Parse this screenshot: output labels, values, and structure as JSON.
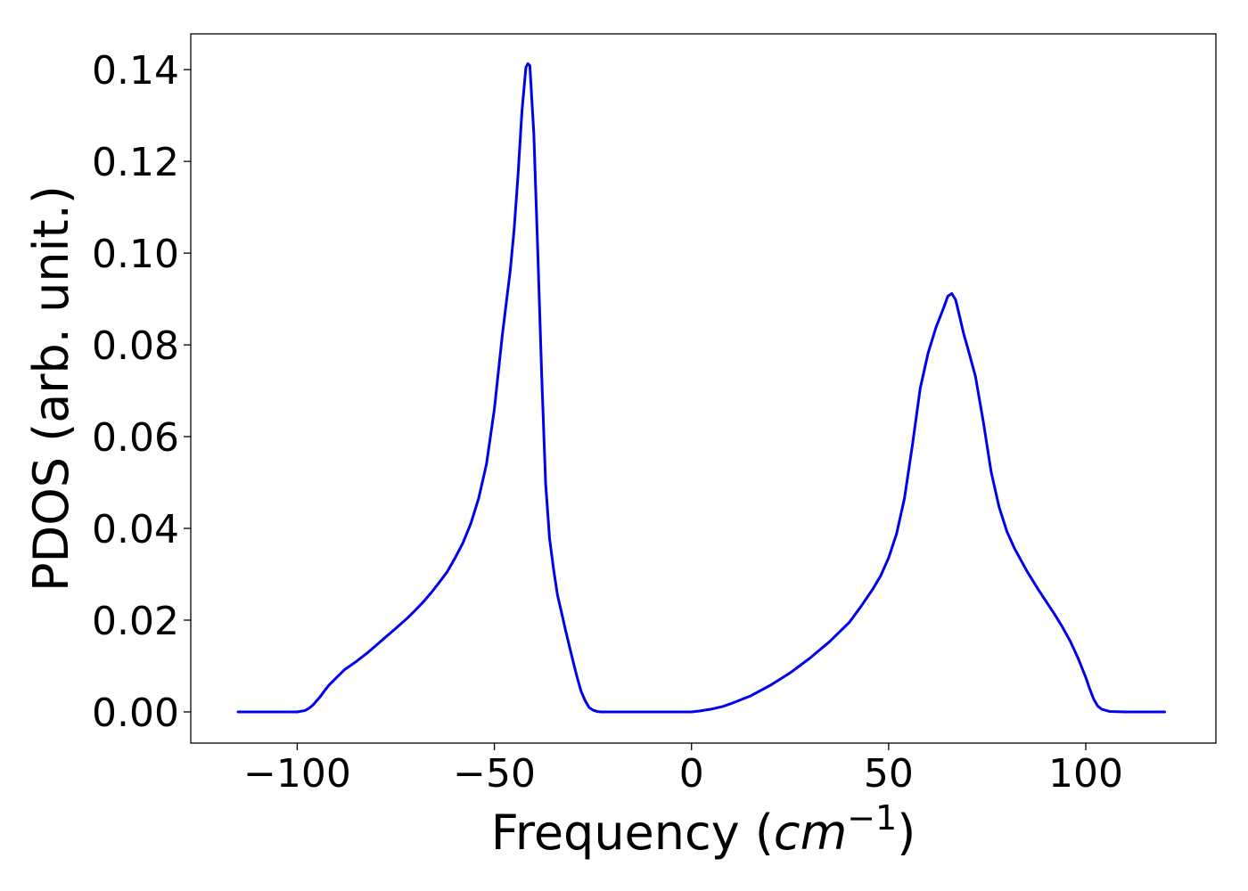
{
  "chart_data": {
    "type": "line",
    "title": "",
    "xlabel": "Frequency (cm⁻¹)",
    "xlabel_parts": {
      "prefix": "Frequency (",
      "math": "cm",
      "sup": "−1",
      "suffix": ")"
    },
    "ylabel": "PDOS (arb. unit.)",
    "xlim": [
      -127,
      133
    ],
    "ylim": [
      -0.0068,
      0.1478
    ],
    "xticks": [
      -100,
      -50,
      0,
      50,
      100
    ],
    "xtick_labels": [
      "−100",
      "−50",
      "0",
      "50",
      "100"
    ],
    "yticks": [
      0.0,
      0.02,
      0.04,
      0.06,
      0.08,
      0.1,
      0.12,
      0.14
    ],
    "ytick_labels": [
      "0.00",
      "0.02",
      "0.04",
      "0.06",
      "0.08",
      "0.10",
      "0.12",
      "0.14"
    ],
    "grid": false,
    "legend": "none",
    "series": [
      {
        "color": "#0000ee",
        "x": [
          -115,
          -100,
          -98,
          -97,
          -96,
          -95,
          -94,
          -93,
          -92,
          -90,
          -88,
          -85,
          -82,
          -80,
          -78,
          -75,
          -72,
          -70,
          -68,
          -66,
          -64,
          -62,
          -60,
          -58,
          -56,
          -54,
          -52,
          -50,
          -48,
          -46,
          -45,
          -44,
          -43,
          -42,
          -41.5,
          -41,
          -40,
          -39,
          -38,
          -37,
          -36,
          -35,
          -34,
          -33,
          -32,
          -31,
          -30,
          -29,
          -28,
          -27,
          -26,
          -25,
          -24,
          -23,
          -22,
          -20,
          -10,
          0,
          2,
          5,
          8,
          10,
          15,
          20,
          25,
          30,
          35,
          40,
          43,
          46,
          48,
          50,
          52,
          54,
          56,
          58,
          60,
          62,
          64,
          65,
          66,
          67,
          68,
          69,
          70,
          72,
          74,
          76,
          78,
          80,
          82,
          85,
          88,
          90,
          92,
          94,
          96,
          98,
          100,
          101,
          102,
          103,
          104,
          106,
          110,
          120
        ],
        "y": [
          0.0,
          0.0,
          0.0003,
          0.0008,
          0.0015,
          0.0025,
          0.0035,
          0.0047,
          0.0058,
          0.0075,
          0.0092,
          0.011,
          0.013,
          0.0145,
          0.016,
          0.0182,
          0.0205,
          0.0222,
          0.024,
          0.026,
          0.0282,
          0.0305,
          0.0335,
          0.0368,
          0.041,
          0.0465,
          0.054,
          0.066,
          0.082,
          0.096,
          0.105,
          0.117,
          0.131,
          0.1405,
          0.1413,
          0.1409,
          0.1262,
          0.1006,
          0.0735,
          0.0498,
          0.0378,
          0.0312,
          0.0255,
          0.0218,
          0.018,
          0.0144,
          0.0109,
          0.0075,
          0.0045,
          0.0025,
          0.001,
          0.0004,
          0.0001,
          0.0,
          0.0,
          0.0,
          0.0,
          0.0,
          0.0002,
          0.0006,
          0.0012,
          0.0018,
          0.0035,
          0.0058,
          0.0085,
          0.0117,
          0.0153,
          0.0195,
          0.023,
          0.0268,
          0.0297,
          0.0336,
          0.0388,
          0.0465,
          0.058,
          0.0705,
          0.0782,
          0.0838,
          0.0882,
          0.0906,
          0.0912,
          0.0898,
          0.0862,
          0.0825,
          0.0795,
          0.0732,
          0.0633,
          0.0523,
          0.0447,
          0.0393,
          0.0355,
          0.0308,
          0.0266,
          0.024,
          0.0214,
          0.0186,
          0.0155,
          0.0118,
          0.0075,
          0.005,
          0.0028,
          0.0013,
          0.0006,
          0.0001,
          0.0,
          0.0
        ]
      }
    ]
  }
}
